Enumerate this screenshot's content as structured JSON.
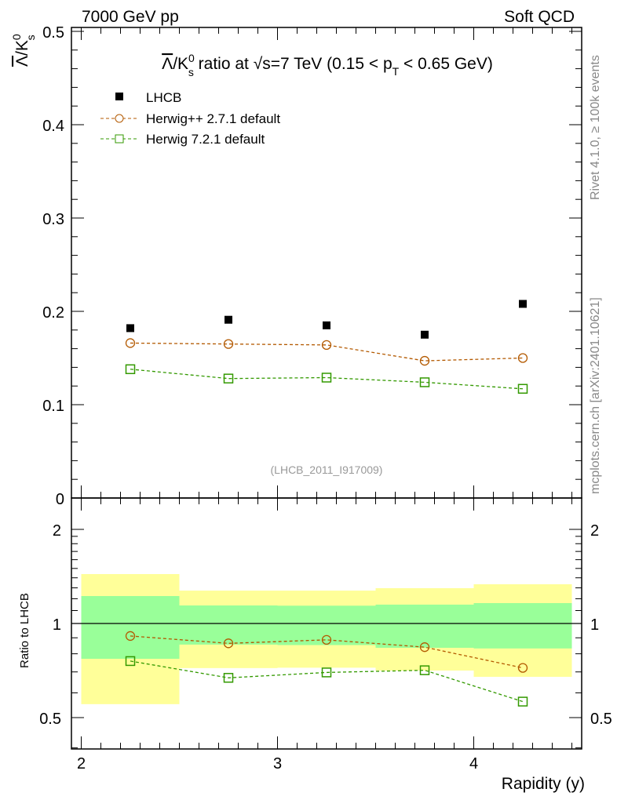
{
  "header": {
    "left": "7000 GeV pp",
    "right": "Soft QCD"
  },
  "side_text": {
    "rivet": "Rivet 4.1.0, ≥ 100k events",
    "mcplots": "mcplots.cern.ch [arXiv:2401.10621]"
  },
  "chart_data": {
    "type": "scatter",
    "title": "Λ̅/K⁰s ratio at √s=7 TeV (0.15 < pT < 0.65 GeV)",
    "title_parts": {
      "a": "Λ",
      "b": "/K",
      "sup": "0",
      "sub": "s",
      "c": " ratio at √s=7 TeV (0.15 < p",
      "sub2": "T",
      "d": " < 0.65 GeV)"
    },
    "ylabel_parts": {
      "a": "Λ",
      "b": "/K",
      "sup": "0",
      "sub": "s"
    },
    "xlabel": "Rapidity (y)",
    "ratio_ylabel": "Ratio to LHCB",
    "analysis_id": "(LHCB_2011_I917009)",
    "xlim": [
      1.95,
      4.55
    ],
    "ylim": [
      0,
      0.5
    ],
    "ratio_ylim": [
      0.4,
      2.5
    ],
    "ratio_scale": "log",
    "x_ticks": [
      "2",
      "3",
      "4"
    ],
    "y_ticks": [
      "0",
      "0.1",
      "0.2",
      "0.3",
      "0.4",
      "0.5"
    ],
    "ratio_ticks": [
      "0.5",
      "1",
      "2"
    ],
    "legend_position": "top-left",
    "x": [
      2.25,
      2.75,
      3.25,
      3.75,
      4.25
    ],
    "bins": [
      [
        2,
        2.5
      ],
      [
        2.5,
        3
      ],
      [
        3,
        3.5
      ],
      [
        3.5,
        4
      ],
      [
        4,
        4.5
      ]
    ],
    "series": [
      {
        "name": "LHCB",
        "marker": "filled-square",
        "color": "#000000",
        "values": [
          0.182,
          0.191,
          0.185,
          0.175,
          0.208
        ]
      },
      {
        "name": "Herwig++ 2.7.1 default",
        "marker": "open-circle",
        "color": "#b35900",
        "values": [
          0.166,
          0.165,
          0.164,
          0.147,
          0.15
        ]
      },
      {
        "name": "Herwig 7.2.1 default",
        "marker": "open-square",
        "color": "#339900",
        "values": [
          0.138,
          0.128,
          0.129,
          0.124,
          0.117
        ]
      }
    ],
    "ratio_bands": {
      "stat": {
        "color": "#99ff99",
        "low": [
          0.771,
          0.856,
          0.853,
          0.836,
          0.832
        ],
        "high": [
          1.224,
          1.142,
          1.14,
          1.149,
          1.162
        ]
      },
      "total": {
        "color": "#ffff99",
        "low": [
          0.552,
          0.72,
          0.722,
          0.707,
          0.675
        ],
        "high": [
          1.439,
          1.274,
          1.274,
          1.297,
          1.335
        ]
      }
    }
  }
}
